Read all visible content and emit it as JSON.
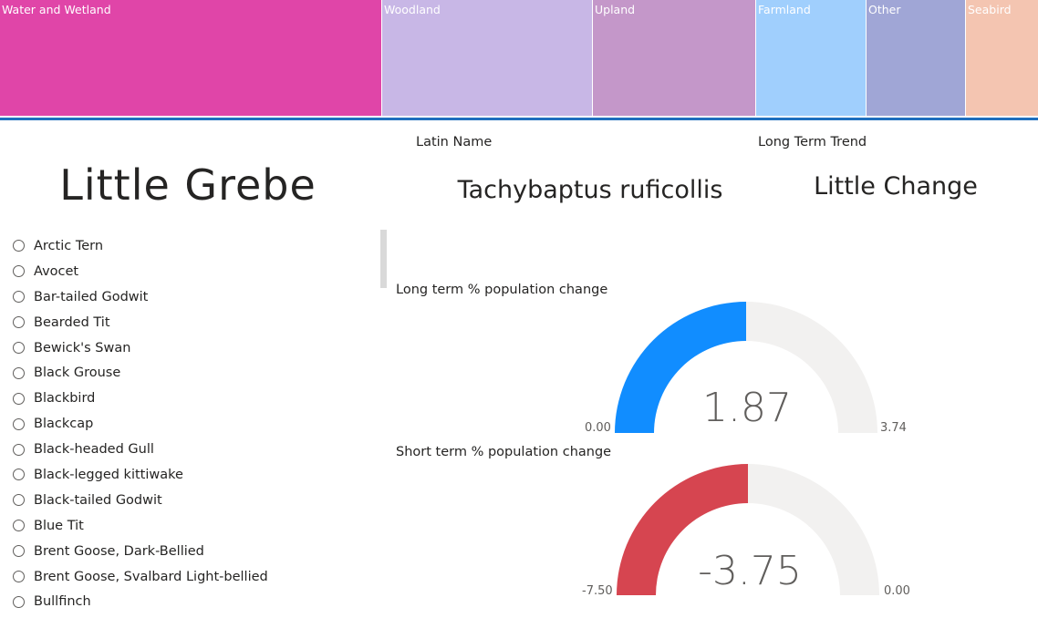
{
  "treemap": {
    "tiles": [
      {
        "label": "Water and Wetland",
        "color": "#e045a8"
      },
      {
        "label": "Woodland",
        "color": "#c8b7e6"
      },
      {
        "label": "Upland",
        "color": "#c497c9"
      },
      {
        "label": "Farmland",
        "color": "#a0cffd"
      },
      {
        "label": "Other",
        "color": "#a0a6d6"
      },
      {
        "label": "Seabird",
        "color": "#f4c5b1"
      }
    ]
  },
  "header": {
    "latin_label": "Latin Name",
    "trend_label": "Long Term Trend"
  },
  "species": {
    "common_name": "Little Grebe",
    "latin_name": "Tachybaptus ruficollis",
    "long_term_trend": "Little Change"
  },
  "slicer": {
    "items": [
      "Arctic Tern",
      "Avocet",
      "Bar-tailed Godwit",
      "Bearded Tit",
      "Bewick's Swan",
      "Black Grouse",
      "Blackbird",
      "Blackcap",
      "Black-headed Gull",
      "Black-legged kittiwake",
      "Black-tailed Godwit",
      "Blue Tit",
      "Brent Goose, Dark-Bellied",
      "Brent Goose, Svalbard Light-bellied",
      "Bullfinch"
    ]
  },
  "gauges": {
    "long": {
      "title": "Long term % population change",
      "value": 1.87,
      "value_label": "1.87",
      "min": 0,
      "min_label": "0.00",
      "max": 3.74,
      "max_label": "3.74",
      "fill_color": "#118dff",
      "track_color": "#f2f1f0"
    },
    "short": {
      "title": "Short term % population change",
      "value": -3.75,
      "value_label": "-3.75",
      "min": -7.5,
      "min_label": "-7.50",
      "max": 0,
      "max_label": "0.00",
      "fill_color": "#d64550",
      "track_color": "#f2f1f0"
    }
  }
}
